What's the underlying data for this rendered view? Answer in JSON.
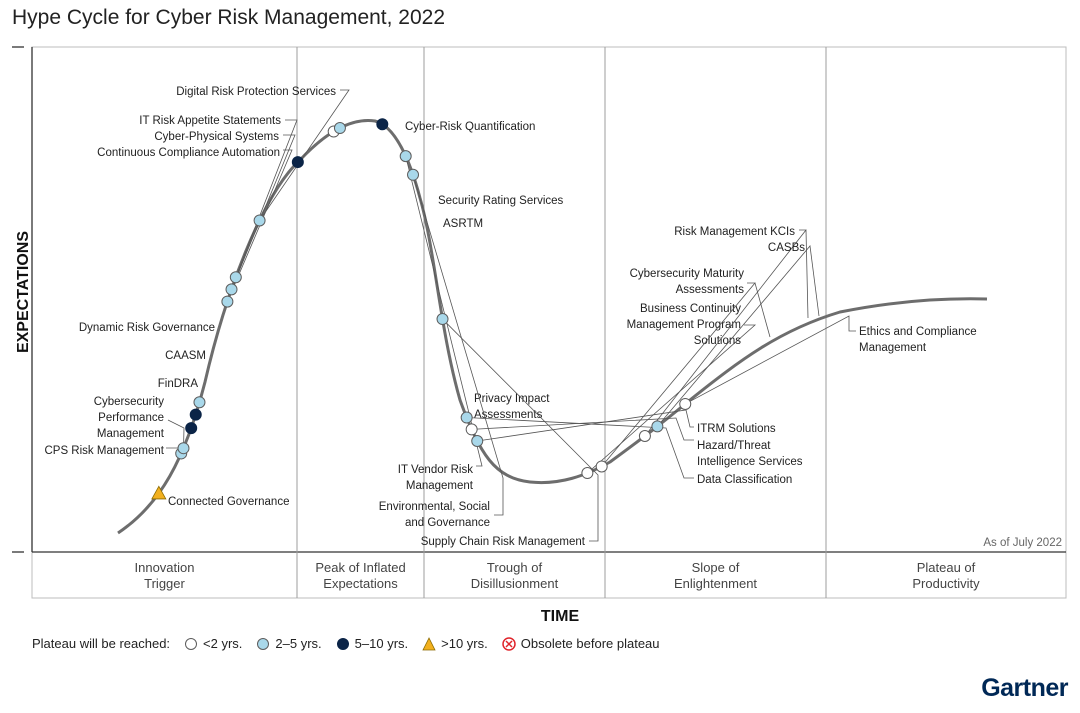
{
  "chart_data": {
    "type": "hype-cycle",
    "title": "Hype Cycle for Cyber Risk Management, 2022",
    "xlabel": "TIME",
    "ylabel": "EXPECTATIONS",
    "as_of": "As of July 2022",
    "phases": [
      {
        "lines": [
          "Innovation",
          "Trigger"
        ]
      },
      {
        "lines": [
          "Peak of Inflated",
          "Expectations"
        ]
      },
      {
        "lines": [
          "Trough of",
          "Disillusionment"
        ]
      },
      {
        "lines": [
          "Slope of",
          "Enlightenment"
        ]
      },
      {
        "lines": [
          "Plateau of",
          "Productivity"
        ]
      }
    ],
    "categories": {
      "lt2": {
        "label": "<2 yrs.",
        "color": "#ffffff"
      },
      "2to5": {
        "label": "2–5 yrs.",
        "color": "#a9d8ea"
      },
      "5to10": {
        "label": "5–10 yrs.",
        "color": "#0b2447"
      },
      "gt10": {
        "label": ">10 yrs.",
        "color": "#f2b01e"
      },
      "obsolete": {
        "label": "Obsolete before plateau",
        "color": "#e0242b"
      }
    },
    "legend_title": "Plateau will be reached:",
    "legend_order": [
      "lt2",
      "2to5",
      "5to10",
      "gt10",
      "obsolete"
    ],
    "technologies": [
      {
        "name": "Connected Governance",
        "lines": [
          "Connected Governance"
        ],
        "cat": "gt10",
        "pos": 0.04
      },
      {
        "name": "CPS Risk Management",
        "lines": [
          "CPS Risk Management"
        ],
        "cat": "2to5",
        "pos": 0.072
      },
      {
        "name": "Cybersecurity Performance Management",
        "lines": [
          "Cybersecurity",
          "Performance",
          "Management"
        ],
        "cat": "2to5",
        "pos": 0.076
      },
      {
        "name": "FinDRA",
        "lines": [
          "FinDRA"
        ],
        "cat": "5to10",
        "pos": 0.091
      },
      {
        "name": "CAASM",
        "lines": [
          "CAASM"
        ],
        "cat": "5to10",
        "pos": 0.101
      },
      {
        "name": "Dynamic Risk Governance",
        "lines": [
          "Dynamic Risk Governance"
        ],
        "cat": "2to5",
        "pos": 0.11
      },
      {
        "name": "Continuous Compliance Automation",
        "lines": [
          "Continuous Compliance Automation"
        ],
        "cat": "2to5",
        "pos": 0.183
      },
      {
        "name": "Cyber-Physical Systems",
        "lines": [
          "Cyber-Physical Systems"
        ],
        "cat": "2to5",
        "pos": 0.192
      },
      {
        "name": "IT Risk Appetite Statements",
        "lines": [
          "IT Risk Appetite Statements"
        ],
        "cat": "2to5",
        "pos": 0.201
      },
      {
        "name": "Digital Risk Protection Services",
        "lines": [
          "Digital Risk Protection Services"
        ],
        "cat": "2to5",
        "pos": 0.244
      },
      {
        "name": "Cyber-Risk Quantification",
        "lines": [
          "Cyber-Risk Quantification"
        ],
        "cat": "5to10",
        "pos": 0.293
      },
      {
        "name": "Security Rating Services",
        "lines": [
          "Security Rating Services"
        ],
        "cat": "lt2",
        "pos": 0.326
      },
      {
        "name": "ASRTM",
        "lines": [
          "ASRTM"
        ],
        "cat": "2to5",
        "pos": 0.331
      },
      {
        "name": "Privacy Impact Assessments",
        "lines": [
          "Privacy Impact",
          "Assessments"
        ],
        "cat": "5to10",
        "pos": 0.362
      },
      {
        "name": "IT Vendor Risk Management",
        "lines": [
          "IT Vendor Risk",
          "Management"
        ],
        "cat": "2to5",
        "pos": 0.39
      },
      {
        "name": "Environmental, Social and Governance",
        "lines": [
          "Environmental, Social",
          "and Governance"
        ],
        "cat": "2to5",
        "pos": 0.404
      },
      {
        "name": "Supply Chain Risk Management",
        "lines": [
          "Supply Chain Risk Management"
        ],
        "cat": "2to5",
        "pos": 0.507
      },
      {
        "name": "Data Classification",
        "lines": [
          "Data Classification"
        ],
        "cat": "2to5",
        "pos": 0.578
      },
      {
        "name": "Hazard/Threat Intelligence Services",
        "lines": [
          "Hazard/Threat",
          "Intelligence Services"
        ],
        "cat": "lt2",
        "pos": 0.587
      },
      {
        "name": "ITRM Solutions",
        "lines": [
          "ITRM Solutions"
        ],
        "cat": "2to5",
        "pos": 0.596
      },
      {
        "name": "Business Continuity Management Program Solutions",
        "lines": [
          "Business Continuity",
          "Management Program",
          "Solutions"
        ],
        "cat": "lt2",
        "pos": 0.686
      },
      {
        "name": "Cybersecurity Maturity Assessments",
        "lines": [
          "Cybersecurity Maturity",
          "Assessments"
        ],
        "cat": "lt2",
        "pos": 0.697
      },
      {
        "name": "Risk Management KCIs",
        "lines": [
          "Risk Management KCIs"
        ],
        "cat": "lt2",
        "pos": 0.734
      },
      {
        "name": "CASBs",
        "lines": [
          "CASBs"
        ],
        "cat": "2to5",
        "pos": 0.745
      },
      {
        "name": "Ethics and Compliance Management",
        "lines": [
          "Ethics and Compliance",
          "Management"
        ],
        "cat": "lt2",
        "pos": 0.77
      }
    ]
  },
  "brand": "Gartner"
}
